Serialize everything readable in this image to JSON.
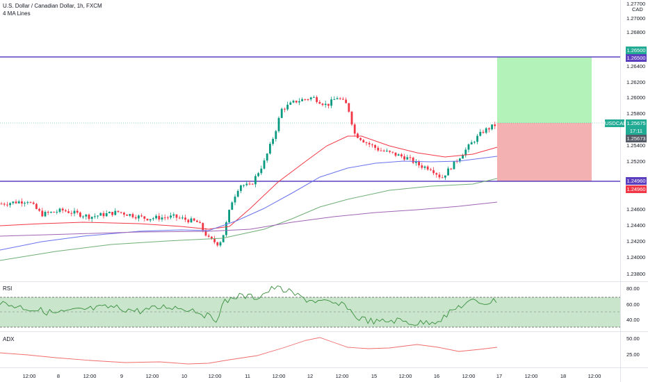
{
  "legend": {
    "title": "U.S. Dollar / Canadian Dollar, 1h, FXCM",
    "indicator": "4 MA Lines"
  },
  "price_axis": {
    "currency": "CAD",
    "top_label": "1.27700",
    "labels": [
      "1.27000",
      "1.26800",
      "1.26400",
      "1.26200",
      "1.26000",
      "1.25800",
      "1.25400",
      "1.25200",
      "1.24600",
      "1.24400",
      "1.24200",
      "1.24000",
      "1.23800"
    ]
  },
  "price_tags": {
    "upper_line_green": "1.26500",
    "upper_line": "1.26500",
    "symbol": "USDCAD",
    "last_price": "1.25675",
    "countdown": "17:11",
    "last_price_gray": "1.25673",
    "lower_line": "1.24960",
    "lower_line_red": "1.24960"
  },
  "rsi": {
    "label": "RSI",
    "axis": [
      "80.00",
      "60.00",
      "40.00"
    ]
  },
  "adx": {
    "label": "ADX",
    "axis": [
      "50.00",
      "25.00"
    ]
  },
  "time_axis": [
    "12:00",
    "8",
    "12:00",
    "9",
    "12:00",
    "10",
    "12:00",
    "11",
    "12:00",
    "12",
    "12:00",
    "15",
    "12:00",
    "16",
    "12:00",
    "17",
    "12:00",
    "18",
    "12:00"
  ],
  "colors": {
    "up": "#089981",
    "down": "#f23645",
    "line": "#5b3fbf",
    "long_profit": "#a6f1ae",
    "long_loss": "#f2a8a8",
    "rsi_fill": "#bfe0c3",
    "ma_red": "#f23645",
    "ma_blue": "#6872ec",
    "ma_green": "#6fae74",
    "ma_purple": "#9e63b3"
  }
}
